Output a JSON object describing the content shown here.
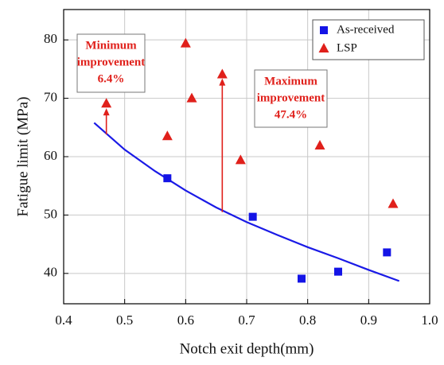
{
  "chart_data": {
    "type": "scatter",
    "x_label": "Notch exit depth(mm)",
    "y_label": "Fatigue limit (MPa)",
    "xlim": [
      0.4,
      1.0
    ],
    "ylim": [
      34.8,
      85.2
    ],
    "xticks": [
      0.4,
      0.5,
      0.6,
      0.7,
      0.8,
      0.9,
      {
        "value": 1.0,
        "label": "1.0"
      }
    ],
    "yticks": [
      40,
      50,
      60,
      70,
      80
    ],
    "grid": true,
    "legend": "upper right",
    "series": [
      {
        "name": "As-received",
        "color": "#1414e6",
        "marker": "square",
        "x": [
          0.57,
          0.71,
          0.79,
          0.85,
          0.93
        ],
        "values": [
          56.3,
          49.7,
          39.1,
          40.3,
          43.6
        ]
      },
      {
        "name": "LSP",
        "color": "#e0201b",
        "marker": "triangle",
        "x": [
          0.47,
          0.57,
          0.6,
          0.61,
          0.66,
          0.69,
          0.82,
          0.94
        ],
        "values": [
          69.1,
          63.5,
          79.4,
          70.0,
          74.1,
          59.4,
          61.9,
          51.9
        ]
      }
    ],
    "fit": {
      "color": "#1a1ae6",
      "x": [
        0.45,
        0.5,
        0.55,
        0.6,
        0.65,
        0.7,
        0.75,
        0.8,
        0.85,
        0.9,
        0.95
      ],
      "y": [
        65.8,
        61.2,
        57.5,
        54.2,
        51.3,
        48.8,
        46.6,
        44.5,
        42.6,
        40.6,
        38.7
      ]
    },
    "arrows": [
      {
        "x": 0.47,
        "from": 63.8,
        "to": 68.3,
        "color": "#e0201b"
      },
      {
        "x": 0.66,
        "from": 50.5,
        "to": 73.4,
        "color": "#e0201b"
      }
    ],
    "annotations": [
      {
        "lines": [
          "Minimum",
          "improvement",
          "6.4%"
        ]
      },
      {
        "lines": [
          "Maximum",
          "improvement",
          "47.4%"
        ]
      }
    ]
  }
}
